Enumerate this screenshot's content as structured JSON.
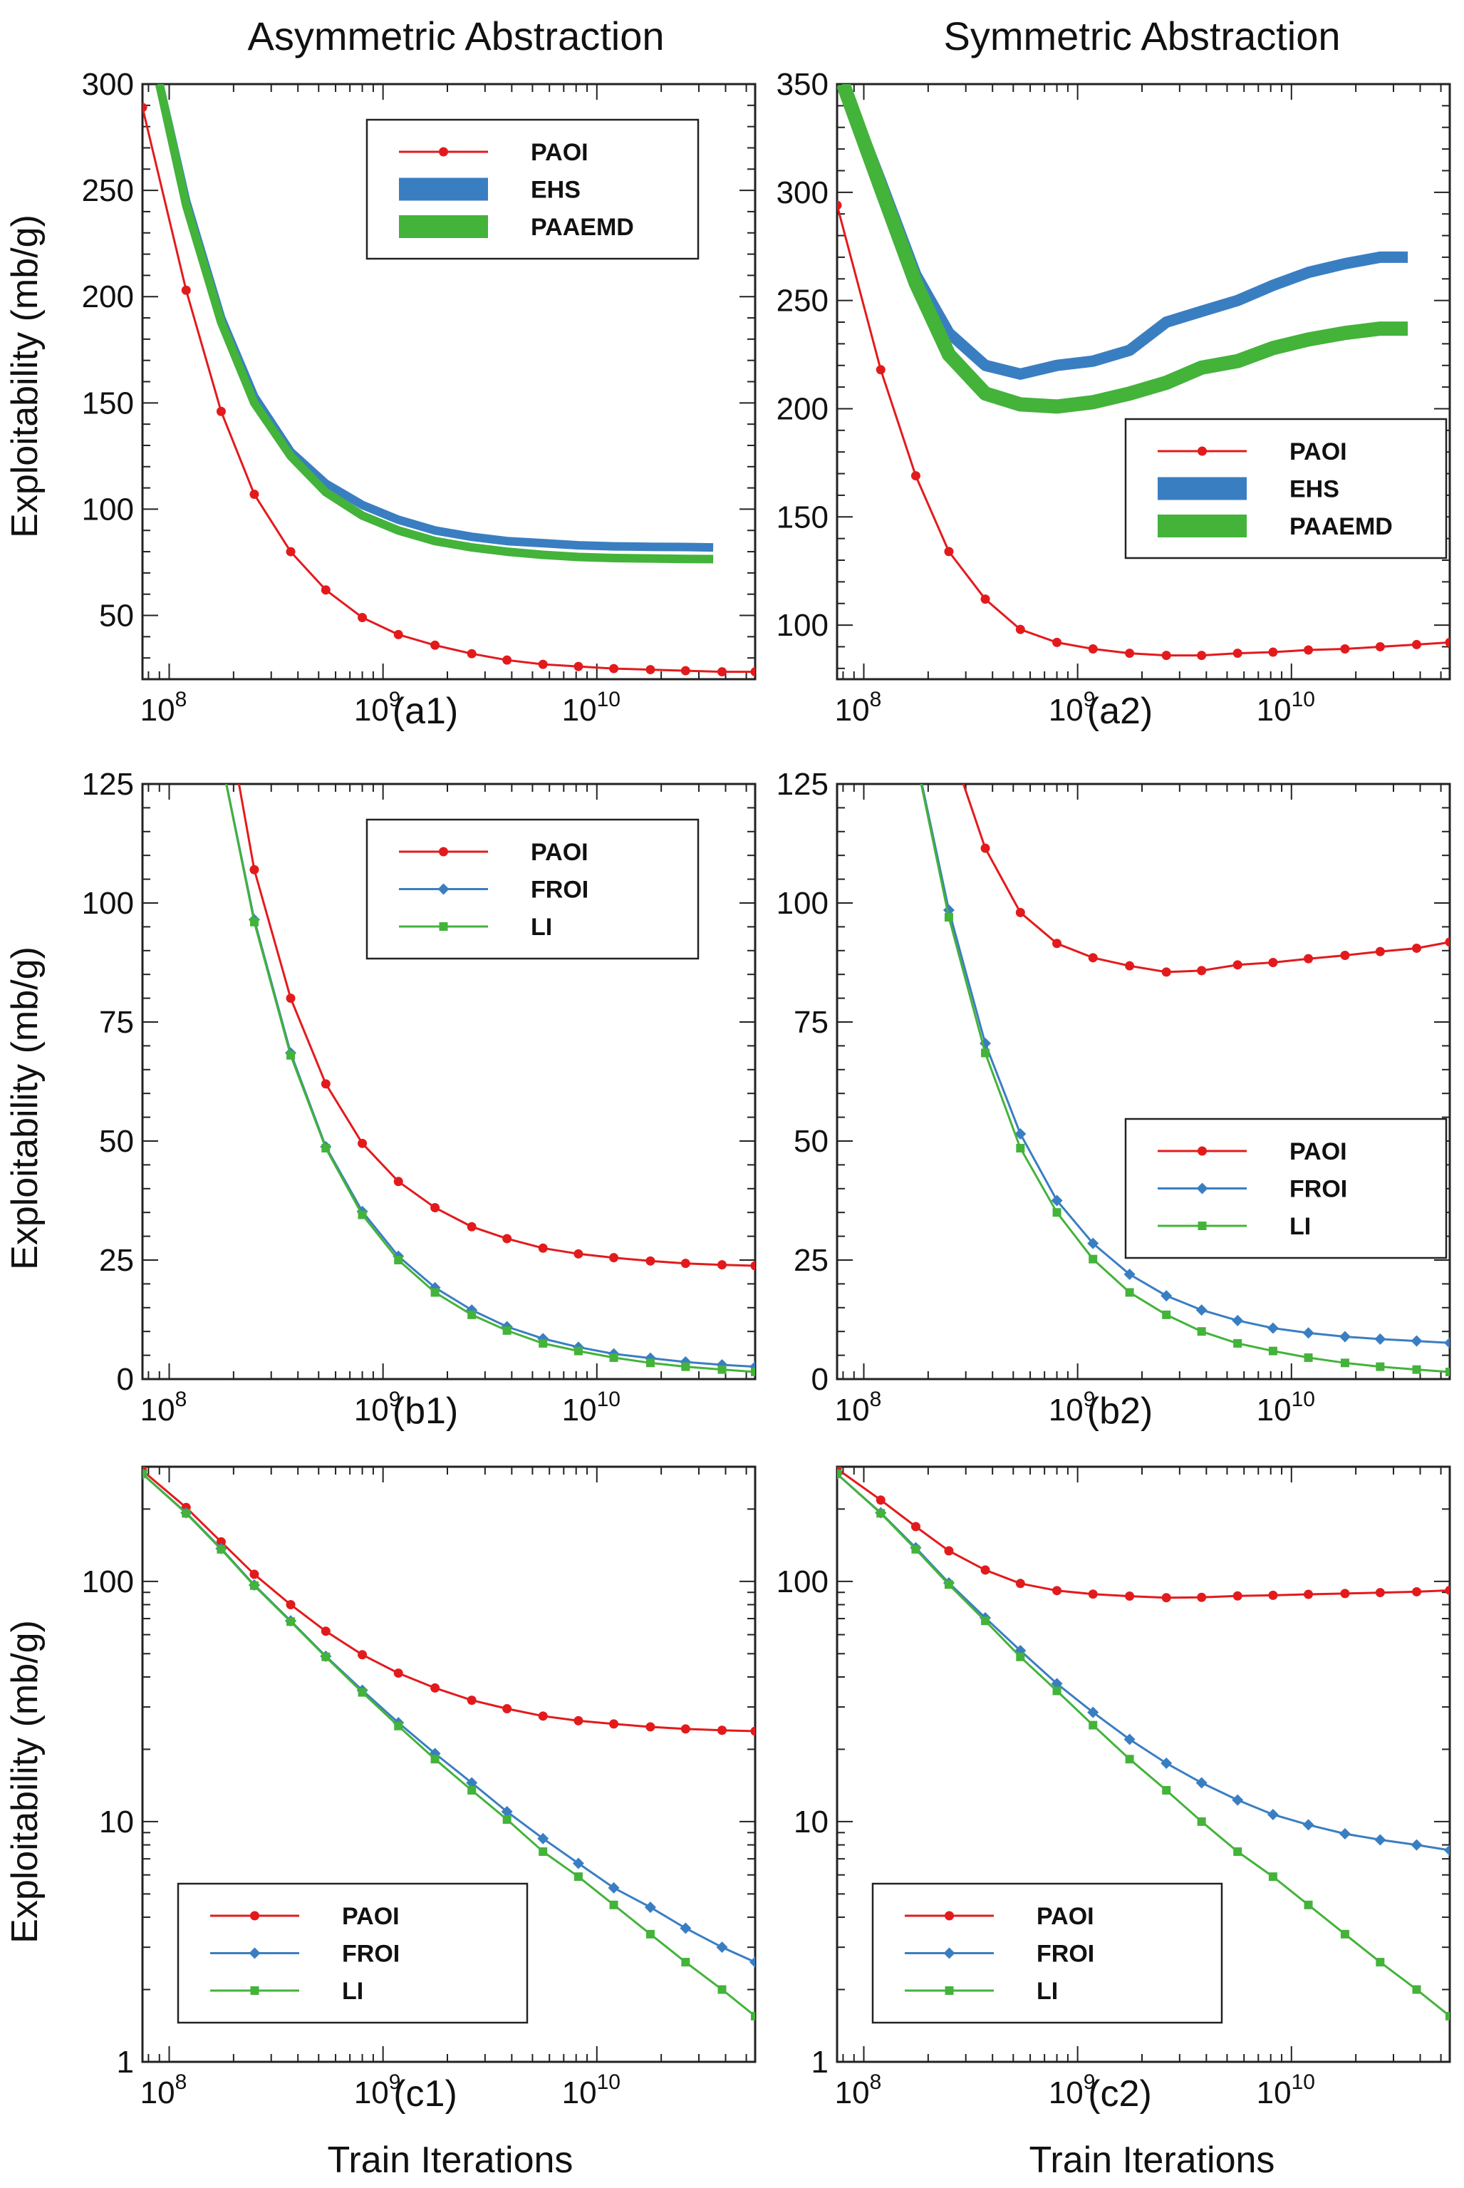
{
  "titles": {
    "left": "Asymmetric Abstraction",
    "right": "Symmetric Abstraction"
  },
  "ylabel": "Exploitability (mb/g)",
  "xlabel": "Train Iterations",
  "colors": {
    "PAOI": "#e31a1c",
    "FROI": "#3a7ec2",
    "LI": "#43b33a",
    "EHS": "#3a7ec2",
    "PAAEMD": "#43b33a"
  },
  "chart_data": [
    {
      "id": "a1",
      "panel_label": "(a1)",
      "type": "line",
      "xscale": "log",
      "yscale": "linear",
      "xlim": [
        75000000.0,
        55000000000.0
      ],
      "ylim": [
        20,
        300
      ],
      "yticks": [
        50,
        100,
        150,
        200,
        250,
        300
      ],
      "xticks": [
        100000000.0,
        1000000000.0,
        10000000000.0
      ],
      "xtick_labels": [
        "10^8",
        "10^9",
        "10^10"
      ],
      "legend": "top-right",
      "series": [
        {
          "name": "PAOI",
          "style": "line-marker",
          "marker": "circle",
          "x": [
            75000000.0,
            120000000.0,
            175000000.0,
            250000000.0,
            370000000.0,
            540000000.0,
            800000000.0,
            1180000000.0,
            1750000000.0,
            2600000000.0,
            3800000000.0,
            5600000000.0,
            8200000000.0,
            12000000000.0,
            17800000000.0,
            26000000000.0,
            38500000000.0,
            55000000000.0
          ],
          "y": [
            289,
            203,
            146,
            107,
            80,
            62,
            49,
            41,
            36,
            32,
            29,
            27,
            26,
            25,
            24.5,
            24,
            23.5,
            23.5
          ]
        },
        {
          "name": "EHS",
          "style": "band",
          "width": 3,
          "x": [
            90000000.0,
            120000000.0,
            175000000.0,
            250000000.0,
            370000000.0,
            540000000.0,
            800000000.0,
            1180000000.0,
            1750000000.0,
            2600000000.0,
            3800000000.0,
            5600000000.0,
            8200000000.0,
            12000000000.0,
            17800000000.0,
            26000000000.0,
            35000000000.0
          ],
          "y": [
            300,
            245,
            190,
            153,
            127,
            112,
            102,
            95,
            90,
            87,
            85,
            84,
            83,
            82.5,
            82.3,
            82.2,
            82
          ]
        },
        {
          "name": "PAAEMD",
          "style": "band",
          "width": 3,
          "x": [
            90000000.0,
            120000000.0,
            175000000.0,
            250000000.0,
            370000000.0,
            540000000.0,
            800000000.0,
            1180000000.0,
            1750000000.0,
            2600000000.0,
            3800000000.0,
            5600000000.0,
            8200000000.0,
            12000000000.0,
            17800000000.0,
            26000000000.0,
            35000000000.0
          ],
          "y": [
            300,
            243,
            188,
            150,
            125,
            108,
            97,
            90,
            85,
            82,
            80,
            78.5,
            77.5,
            77,
            76.8,
            76.6,
            76.5
          ]
        }
      ]
    },
    {
      "id": "a2",
      "panel_label": "(a2)",
      "type": "line",
      "xscale": "log",
      "yscale": "linear",
      "xlim": [
        75000000.0,
        55000000000.0
      ],
      "ylim": [
        75,
        350
      ],
      "yticks": [
        100,
        150,
        200,
        250,
        300,
        350
      ],
      "xticks": [
        100000000.0,
        1000000000.0,
        10000000000.0
      ],
      "xtick_labels": [
        "10^8",
        "10^9",
        "10^10"
      ],
      "legend": "center-right",
      "series": [
        {
          "name": "PAOI",
          "style": "line-marker",
          "marker": "circle",
          "x": [
            75000000.0,
            120000000.0,
            175000000.0,
            250000000.0,
            370000000.0,
            540000000.0,
            800000000.0,
            1180000000.0,
            1750000000.0,
            2600000000.0,
            3800000000.0,
            5600000000.0,
            8200000000.0,
            12000000000.0,
            17800000000.0,
            26000000000.0,
            38500000000.0,
            55000000000.0
          ],
          "y": [
            294,
            218,
            169,
            134,
            112,
            98,
            92,
            89,
            87,
            86,
            86,
            87,
            87.5,
            88.5,
            89,
            90,
            91,
            92
          ]
        },
        {
          "name": "EHS",
          "style": "band",
          "width": 4,
          "x": [
            80000000.0,
            120000000.0,
            175000000.0,
            250000000.0,
            370000000.0,
            540000000.0,
            800000000.0,
            1180000000.0,
            1750000000.0,
            2600000000.0,
            3800000000.0,
            5600000000.0,
            8200000000.0,
            12000000000.0,
            17800000000.0,
            26000000000.0,
            35000000000.0
          ],
          "y": [
            350,
            305,
            262,
            235,
            220,
            216,
            220,
            222,
            227,
            240,
            245,
            250,
            257,
            263,
            267,
            270,
            270
          ]
        },
        {
          "name": "PAAEMD",
          "style": "band",
          "width": 5,
          "x": [
            80000000.0,
            120000000.0,
            175000000.0,
            250000000.0,
            370000000.0,
            540000000.0,
            800000000.0,
            1180000000.0,
            1750000000.0,
            2600000000.0,
            3800000000.0,
            5600000000.0,
            8200000000.0,
            12000000000.0,
            17800000000.0,
            26000000000.0,
            35000000000.0
          ],
          "y": [
            350,
            302,
            258,
            225,
            207,
            202,
            201,
            203,
            207,
            212,
            219,
            222,
            228,
            232,
            235,
            237,
            237
          ]
        }
      ]
    },
    {
      "id": "b1",
      "panel_label": "(b1)",
      "type": "line",
      "xscale": "log",
      "yscale": "linear",
      "xlim": [
        75000000.0,
        55000000000.0
      ],
      "ylim": [
        0,
        125
      ],
      "yticks": [
        0,
        25,
        50,
        75,
        100,
        125
      ],
      "xticks": [
        100000000.0,
        1000000000.0,
        10000000000.0
      ],
      "xtick_labels": [
        "10^8",
        "10^9",
        "10^10"
      ],
      "legend": "top-right",
      "series": [
        {
          "name": "PAOI",
          "style": "line-marker",
          "marker": "circle",
          "x": [
            175000000.0,
            250000000.0,
            370000000.0,
            540000000.0,
            800000000.0,
            1180000000.0,
            1750000000.0,
            2600000000.0,
            3800000000.0,
            5600000000.0,
            8200000000.0,
            12000000000.0,
            17800000000.0,
            26000000000.0,
            38500000000.0,
            55000000000.0
          ],
          "y": [
            146,
            107,
            80,
            62,
            49.5,
            41.5,
            36,
            32,
            29.5,
            27.5,
            26.3,
            25.5,
            24.8,
            24.3,
            24,
            23.8
          ]
        },
        {
          "name": "FROI",
          "style": "line-marker",
          "marker": "diamond",
          "x": [
            150000000.0,
            250000000.0,
            370000000.0,
            540000000.0,
            800000000.0,
            1180000000.0,
            1750000000.0,
            2600000000.0,
            3800000000.0,
            5600000000.0,
            8200000000.0,
            12000000000.0,
            17800000000.0,
            26000000000.0,
            38500000000.0,
            55000000000.0
          ],
          "y": [
            145,
            96.5,
            68.5,
            48.8,
            35.2,
            25.8,
            19.2,
            14.5,
            11,
            8.5,
            6.7,
            5.3,
            4.4,
            3.6,
            3,
            2.6
          ]
        },
        {
          "name": "LI",
          "style": "line-marker",
          "marker": "square",
          "x": [
            150000000.0,
            250000000.0,
            370000000.0,
            540000000.0,
            800000000.0,
            1180000000.0,
            1750000000.0,
            2600000000.0,
            3800000000.0,
            5600000000.0,
            8200000000.0,
            12000000000.0,
            17800000000.0,
            26000000000.0,
            38500000000.0,
            55000000000.0
          ],
          "y": [
            145,
            96,
            68,
            48.5,
            34.5,
            25,
            18.2,
            13.5,
            10.2,
            7.5,
            5.9,
            4.5,
            3.4,
            2.6,
            2,
            1.5
          ]
        }
      ]
    },
    {
      "id": "b2",
      "panel_label": "(b2)",
      "type": "line",
      "xscale": "log",
      "yscale": "linear",
      "xlim": [
        75000000.0,
        55000000000.0
      ],
      "ylim": [
        0,
        125
      ],
      "yticks": [
        0,
        25,
        50,
        75,
        100,
        125
      ],
      "xticks": [
        100000000.0,
        1000000000.0,
        10000000000.0
      ],
      "xtick_labels": [
        "10^8",
        "10^9",
        "10^10"
      ],
      "legend": "center-right",
      "series": [
        {
          "name": "PAOI",
          "style": "line-marker",
          "marker": "circle",
          "x": [
            250000000.0,
            370000000.0,
            540000000.0,
            800000000.0,
            1180000000.0,
            1750000000.0,
            2600000000.0,
            3800000000.0,
            5600000000.0,
            8200000000.0,
            12000000000.0,
            17800000000.0,
            26000000000.0,
            38500000000.0,
            55000000000.0
          ],
          "y": [
            134,
            111.5,
            98,
            91.5,
            88.5,
            86.8,
            85.5,
            85.8,
            87,
            87.5,
            88.3,
            89,
            89.8,
            90.5,
            91.8
          ]
        },
        {
          "name": "FROI",
          "style": "line-marker",
          "marker": "diamond",
          "x": [
            150000000.0,
            250000000.0,
            370000000.0,
            540000000.0,
            800000000.0,
            1180000000.0,
            1750000000.0,
            2600000000.0,
            3800000000.0,
            5600000000.0,
            8200000000.0,
            12000000000.0,
            17800000000.0,
            26000000000.0,
            38500000000.0,
            55000000000.0
          ],
          "y": [
            145,
            98.5,
            70.5,
            51.5,
            37.5,
            28.5,
            22,
            17.5,
            14.5,
            12.3,
            10.7,
            9.7,
            8.9,
            8.4,
            8,
            7.6
          ]
        },
        {
          "name": "LI",
          "style": "line-marker",
          "marker": "square",
          "x": [
            150000000.0,
            250000000.0,
            370000000.0,
            540000000.0,
            800000000.0,
            1180000000.0,
            1750000000.0,
            2600000000.0,
            3800000000.0,
            5600000000.0,
            8200000000.0,
            12000000000.0,
            17800000000.0,
            26000000000.0,
            38500000000.0,
            55000000000.0
          ],
          "y": [
            145,
            97,
            68.5,
            48.5,
            35,
            25.2,
            18.2,
            13.5,
            10,
            7.5,
            5.9,
            4.5,
            3.4,
            2.6,
            2,
            1.5
          ]
        }
      ]
    },
    {
      "id": "c1",
      "panel_label": "(c1)",
      "type": "line",
      "xscale": "log",
      "yscale": "log",
      "xlim": [
        75000000.0,
        55000000000.0
      ],
      "ylim": [
        1,
        300
      ],
      "yticks": [
        1,
        10,
        100
      ],
      "ytick_labels": [
        "1",
        "10",
        "100"
      ],
      "xticks": [
        100000000.0,
        1000000000.0,
        10000000000.0
      ],
      "xtick_labels": [
        "10^8",
        "10^9",
        "10^10"
      ],
      "legend": "bottom-left",
      "series": [
        {
          "name": "PAOI",
          "style": "line-marker",
          "marker": "circle",
          "x": [
            75000000.0,
            120000000.0,
            175000000.0,
            250000000.0,
            370000000.0,
            540000000.0,
            800000000.0,
            1180000000.0,
            1750000000.0,
            2600000000.0,
            3800000000.0,
            5600000000.0,
            8200000000.0,
            12000000000.0,
            17800000000.0,
            26000000000.0,
            38500000000.0,
            55000000000.0
          ],
          "y": [
            289,
            203,
            146,
            107,
            80,
            62,
            49.5,
            41.5,
            36,
            32,
            29.5,
            27.5,
            26.3,
            25.5,
            24.8,
            24.3,
            24,
            23.8
          ]
        },
        {
          "name": "FROI",
          "style": "line-marker",
          "marker": "diamond",
          "x": [
            75000000.0,
            120000000.0,
            175000000.0,
            250000000.0,
            370000000.0,
            540000000.0,
            800000000.0,
            1180000000.0,
            1750000000.0,
            2600000000.0,
            3800000000.0,
            5600000000.0,
            8200000000.0,
            12000000000.0,
            17800000000.0,
            26000000000.0,
            38500000000.0,
            55000000000.0
          ],
          "y": [
            280,
            193,
            137,
            96.5,
            68.5,
            48.8,
            35.2,
            25.8,
            19.2,
            14.5,
            11,
            8.5,
            6.7,
            5.3,
            4.4,
            3.6,
            3,
            2.6
          ]
        },
        {
          "name": "LI",
          "style": "line-marker",
          "marker": "square",
          "x": [
            75000000.0,
            120000000.0,
            175000000.0,
            250000000.0,
            370000000.0,
            540000000.0,
            800000000.0,
            1180000000.0,
            1750000000.0,
            2600000000.0,
            3800000000.0,
            5600000000.0,
            8200000000.0,
            12000000000.0,
            17800000000.0,
            26000000000.0,
            38500000000.0,
            55000000000.0
          ],
          "y": [
            280,
            192,
            136,
            96,
            68,
            48.5,
            34.5,
            25,
            18.2,
            13.5,
            10.2,
            7.5,
            5.9,
            4.5,
            3.4,
            2.6,
            2,
            1.55
          ]
        }
      ]
    },
    {
      "id": "c2",
      "panel_label": "(c2)",
      "type": "line",
      "xscale": "log",
      "yscale": "log",
      "xlim": [
        75000000.0,
        55000000000.0
      ],
      "ylim": [
        1,
        300
      ],
      "yticks": [
        1,
        10,
        100
      ],
      "ytick_labels": [
        "1",
        "10",
        "100"
      ],
      "xticks": [
        100000000.0,
        1000000000.0,
        10000000000.0
      ],
      "xtick_labels": [
        "10^8",
        "10^9",
        "10^10"
      ],
      "legend": "bottom-left",
      "series": [
        {
          "name": "PAOI",
          "style": "line-marker",
          "marker": "circle",
          "x": [
            75000000.0,
            120000000.0,
            175000000.0,
            250000000.0,
            370000000.0,
            540000000.0,
            800000000.0,
            1180000000.0,
            1750000000.0,
            2600000000.0,
            3800000000.0,
            5600000000.0,
            8200000000.0,
            12000000000.0,
            17800000000.0,
            26000000000.0,
            38500000000.0,
            55000000000.0
          ],
          "y": [
            294,
            218,
            169,
            134,
            111.5,
            98,
            91.5,
            88.5,
            86.8,
            85.5,
            85.8,
            87,
            87.5,
            88.3,
            89,
            89.8,
            90.5,
            91.8
          ]
        },
        {
          "name": "FROI",
          "style": "line-marker",
          "marker": "diamond",
          "x": [
            75000000.0,
            120000000.0,
            175000000.0,
            250000000.0,
            370000000.0,
            540000000.0,
            800000000.0,
            1180000000.0,
            1750000000.0,
            2600000000.0,
            3800000000.0,
            5600000000.0,
            8200000000.0,
            12000000000.0,
            17800000000.0,
            26000000000.0,
            38500000000.0,
            55000000000.0
          ],
          "y": [
            280,
            193,
            138,
            98.5,
            70.5,
            51.5,
            37.5,
            28.5,
            22,
            17.5,
            14.5,
            12.3,
            10.7,
            9.7,
            8.9,
            8.4,
            8,
            7.6
          ]
        },
        {
          "name": "LI",
          "style": "line-marker",
          "marker": "square",
          "x": [
            75000000.0,
            120000000.0,
            175000000.0,
            250000000.0,
            370000000.0,
            540000000.0,
            800000000.0,
            1180000000.0,
            1750000000.0,
            2600000000.0,
            3800000000.0,
            5600000000.0,
            8200000000.0,
            12000000000.0,
            17800000000.0,
            26000000000.0,
            38500000000.0,
            55000000000.0
          ],
          "y": [
            280,
            192,
            136,
            97,
            68.5,
            48.5,
            35,
            25.2,
            18.2,
            13.5,
            10,
            7.5,
            5.9,
            4.5,
            3.4,
            2.6,
            2,
            1.55
          ]
        }
      ]
    }
  ]
}
